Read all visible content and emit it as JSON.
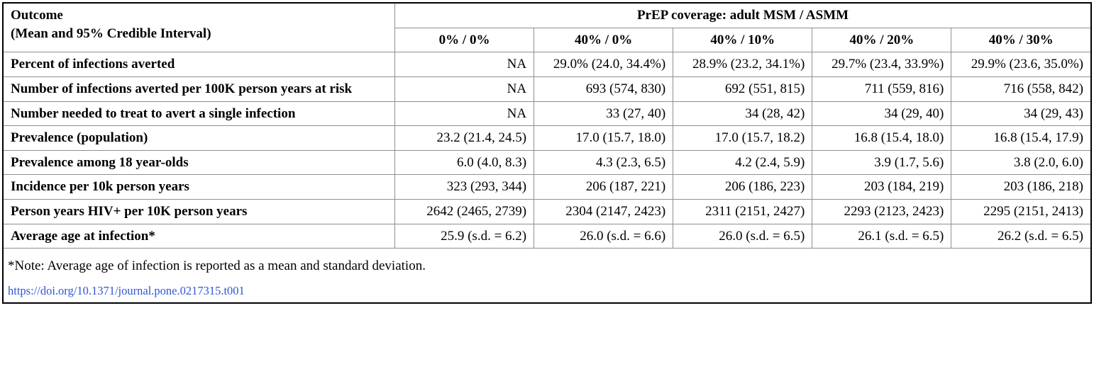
{
  "header": {
    "outcome_line1": "Outcome",
    "outcome_line2": "(Mean and 95% Credible Interval)",
    "group": "PrEP coverage: adult MSM / ASMM",
    "cols": [
      "0% / 0%",
      "40% / 0%",
      "40% / 10%",
      "40% / 20%",
      "40% / 30%"
    ]
  },
  "rows": [
    {
      "label": "Percent of infections averted",
      "c": [
        "NA",
        "29.0% (24.0, 34.4%)",
        "28.9% (23.2, 34.1%)",
        "29.7% (23.4, 33.9%)",
        "29.9% (23.6, 35.0%)"
      ]
    },
    {
      "label": "Number of infections averted per 100K person years at risk",
      "c": [
        "NA",
        "693 (574, 830)",
        "692 (551, 815)",
        "711 (559, 816)",
        "716 (558, 842)"
      ]
    },
    {
      "label": "Number needed to treat to avert a single infection",
      "c": [
        "NA",
        "33 (27, 40)",
        "34 (28, 42)",
        "34 (29, 40)",
        "34 (29, 43)"
      ]
    },
    {
      "label": "Prevalence (population)",
      "c": [
        "23.2 (21.4, 24.5)",
        "17.0 (15.7, 18.0)",
        "17.0 (15.7, 18.2)",
        "16.8 (15.4, 18.0)",
        "16.8 (15.4, 17.9)"
      ]
    },
    {
      "label": "Prevalence among 18 year-olds",
      "c": [
        "6.0 (4.0, 8.3)",
        "4.3 (2.3, 6.5)",
        "4.2 (2.4, 5.9)",
        "3.9 (1.7, 5.6)",
        "3.8 (2.0, 6.0)"
      ]
    },
    {
      "label": "Incidence per 10k person years",
      "c": [
        "323 (293, 344)",
        "206 (187, 221)",
        "206 (186, 223)",
        "203 (184, 219)",
        "203 (186, 218)"
      ]
    },
    {
      "label": "Person years HIV+ per 10K person years",
      "c": [
        "2642 (2465, 2739)",
        "2304 (2147, 2423)",
        "2311 (2151, 2427)",
        "2293 (2123, 2423)",
        "2295 (2151, 2413)"
      ]
    },
    {
      "label": "Average age at infection*",
      "c": [
        "25.9 (s.d. = 6.2)",
        "26.0 (s.d. = 6.6)",
        "26.0 (s.d. = 6.5)",
        "26.1 (s.d. = 6.5)",
        "26.2 (s.d. = 6.5)"
      ]
    }
  ],
  "footnote": "*Note: Average age of infection is reported as a mean and standard deviation.",
  "doi": "https://doi.org/10.1371/journal.pone.0217315.t001",
  "styling": {
    "font_family": "Times New Roman",
    "body_fontsize_pt": 14,
    "header_fontweight": "bold",
    "frame_border_color": "#000000",
    "cell_border_color": "#8f8f8f",
    "background_color": "#ffffff",
    "text_color": "#000000",
    "link_color": "#3056d3",
    "column_widths_percent": [
      36,
      12.8,
      12.8,
      12.8,
      12.8,
      12.8
    ],
    "value_align": "right",
    "label_align": "left"
  }
}
